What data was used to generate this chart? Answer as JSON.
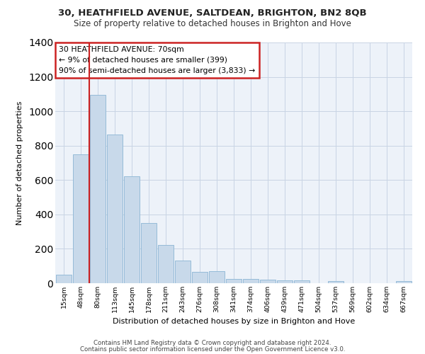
{
  "title1": "30, HEATHFIELD AVENUE, SALTDEAN, BRIGHTON, BN2 8QB",
  "title2": "Size of property relative to detached houses in Brighton and Hove",
  "xlabel": "Distribution of detached houses by size in Brighton and Hove",
  "ylabel": "Number of detached properties",
  "footnote1": "Contains HM Land Registry data © Crown copyright and database right 2024.",
  "footnote2": "Contains public sector information licensed under the Open Government Licence v3.0.",
  "annotation_title": "30 HEATHFIELD AVENUE: 70sqm",
  "annotation_line2": "← 9% of detached houses are smaller (399)",
  "annotation_line3": "90% of semi-detached houses are larger (3,833) →",
  "bar_color": "#c8d9ea",
  "bar_edge_color": "#8ab4d4",
  "highlight_color": "#cc2222",
  "grid_color": "#c8d4e4",
  "background_color": "#edf2f9",
  "categories": [
    "15sqm",
    "48sqm",
    "80sqm",
    "113sqm",
    "145sqm",
    "178sqm",
    "211sqm",
    "243sqm",
    "276sqm",
    "308sqm",
    "341sqm",
    "374sqm",
    "406sqm",
    "439sqm",
    "471sqm",
    "504sqm",
    "537sqm",
    "569sqm",
    "602sqm",
    "634sqm",
    "667sqm"
  ],
  "values": [
    50,
    750,
    1095,
    865,
    620,
    350,
    222,
    130,
    65,
    70,
    25,
    25,
    20,
    15,
    15,
    0,
    12,
    0,
    0,
    0,
    12
  ],
  "red_line_x": 1.5,
  "ylim": [
    0,
    1400
  ],
  "yticks": [
    0,
    200,
    400,
    600,
    800,
    1000,
    1200,
    1400
  ]
}
